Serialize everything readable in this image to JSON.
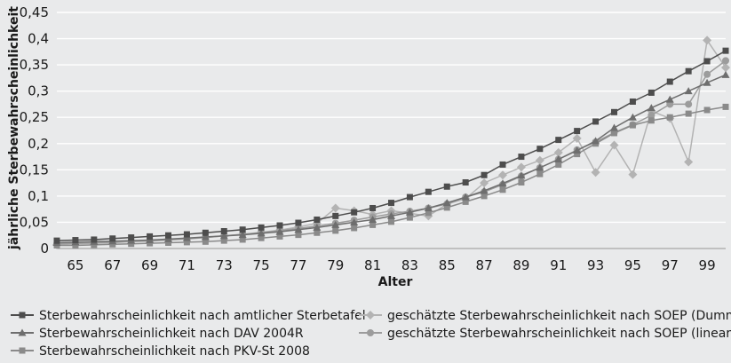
{
  "chart_data": {
    "type": "line",
    "xlabel": "Alter",
    "ylabel": "jährliche Sterbewahrscheinlichkeit",
    "xlim": [
      64,
      100
    ],
    "ylim": [
      0,
      0.45
    ],
    "yticks": [
      "0",
      "0,05",
      "0,1",
      "0,15",
      "0,2",
      "0,25",
      "0,3",
      "0,35",
      "0,4",
      "0,45"
    ],
    "xticks": [
      "65",
      "67",
      "69",
      "71",
      "73",
      "75",
      "77",
      "79",
      "81",
      "83",
      "85",
      "87",
      "89",
      "91",
      "93",
      "95",
      "97",
      "99"
    ],
    "xtick_values": [
      65,
      67,
      69,
      71,
      73,
      75,
      77,
      79,
      81,
      83,
      85,
      87,
      89,
      91,
      93,
      95,
      97,
      99
    ],
    "grid": "horizontal",
    "legend_position": "bottom",
    "series": [
      {
        "name": "Sterbewahrscheinlichkeit nach amtlicher Sterbetafel",
        "color": "#4d4d4d",
        "marker": "square",
        "x": [
          64,
          65,
          66,
          67,
          68,
          69,
          70,
          71,
          72,
          73,
          74,
          75,
          76,
          77,
          78,
          79,
          80,
          81,
          82,
          83,
          84,
          85,
          86,
          87,
          88,
          89,
          90,
          91,
          92,
          93,
          94,
          95,
          96,
          97,
          98,
          99,
          100
        ],
        "values": [
          0.015,
          0.016,
          0.017,
          0.019,
          0.021,
          0.023,
          0.025,
          0.027,
          0.03,
          0.033,
          0.036,
          0.04,
          0.044,
          0.049,
          0.055,
          0.062,
          0.069,
          0.077,
          0.087,
          0.098,
          0.108,
          0.118,
          0.126,
          0.14,
          0.16,
          0.175,
          0.19,
          0.207,
          0.224,
          0.242,
          0.26,
          0.28,
          0.297,
          0.318,
          0.338,
          0.357,
          0.377
        ]
      },
      {
        "name": "Sterbewahrscheinlichkeit nach DAV 2004R",
        "color": "#6e6e6e",
        "marker": "triangle",
        "x": [
          64,
          65,
          66,
          67,
          68,
          69,
          70,
          71,
          72,
          73,
          74,
          75,
          76,
          77,
          78,
          79,
          80,
          81,
          82,
          83,
          84,
          85,
          86,
          87,
          88,
          89,
          90,
          91,
          92,
          93,
          94,
          95,
          96,
          97,
          98,
          99,
          100
        ],
        "values": [
          0.011,
          0.012,
          0.013,
          0.014,
          0.015,
          0.016,
          0.018,
          0.02,
          0.022,
          0.024,
          0.026,
          0.029,
          0.032,
          0.036,
          0.04,
          0.045,
          0.05,
          0.055,
          0.062,
          0.069,
          0.077,
          0.087,
          0.098,
          0.11,
          0.124,
          0.139,
          0.154,
          0.17,
          0.187,
          0.205,
          0.23,
          0.25,
          0.268,
          0.284,
          0.3,
          0.316,
          0.331
        ]
      },
      {
        "name": "Sterbewahrscheinlichkeit nach PKV-St 2008",
        "color": "#8a8a8a",
        "marker": "square",
        "x": [
          64,
          65,
          66,
          67,
          68,
          69,
          70,
          71,
          72,
          73,
          74,
          75,
          76,
          77,
          78,
          79,
          80,
          81,
          82,
          83,
          84,
          85,
          86,
          87,
          88,
          89,
          90,
          91,
          92,
          93,
          94,
          95,
          96,
          97,
          98,
          99,
          100
        ],
        "values": [
          0.006,
          0.006,
          0.007,
          0.008,
          0.009,
          0.01,
          0.011,
          0.012,
          0.013,
          0.015,
          0.017,
          0.02,
          0.023,
          0.026,
          0.03,
          0.034,
          0.039,
          0.045,
          0.051,
          0.059,
          0.068,
          0.078,
          0.089,
          0.1,
          0.112,
          0.126,
          0.142,
          0.16,
          0.18,
          0.2,
          0.22,
          0.235,
          0.244,
          0.25,
          0.257,
          0.264,
          0.27
        ]
      },
      {
        "name": "geschätzte Sterbewahrscheinlichkeit nach SOEP (Dummies)",
        "color": "#b3b3b3",
        "marker": "diamond",
        "x": [
          64,
          65,
          66,
          67,
          68,
          69,
          70,
          71,
          72,
          73,
          74,
          75,
          76,
          77,
          78,
          79,
          80,
          81,
          82,
          83,
          84,
          85,
          86,
          87,
          88,
          89,
          90,
          91,
          92,
          93,
          94,
          95,
          96,
          97,
          98,
          99,
          100
        ],
        "values": [
          0.007,
          0.009,
          0.01,
          0.011,
          0.013,
          0.014,
          0.016,
          0.018,
          0.021,
          0.024,
          0.027,
          0.031,
          0.035,
          0.041,
          0.048,
          0.077,
          0.072,
          0.065,
          0.072,
          0.067,
          0.062,
          0.085,
          0.095,
          0.125,
          0.14,
          0.155,
          0.168,
          0.183,
          0.21,
          0.145,
          0.197,
          0.141,
          0.262,
          0.248,
          0.165,
          0.397,
          0.345
        ]
      },
      {
        "name": "geschätzte Sterbewahrscheinlichkeit nach SOEP (linear)",
        "color": "#9c9c9c",
        "marker": "circle",
        "x": [
          64,
          65,
          66,
          67,
          68,
          69,
          70,
          71,
          72,
          73,
          74,
          75,
          76,
          77,
          78,
          79,
          80,
          81,
          82,
          83,
          84,
          85,
          86,
          87,
          88,
          89,
          90,
          91,
          92,
          93,
          94,
          95,
          96,
          97,
          98,
          99,
          100
        ],
        "values": [
          0.009,
          0.01,
          0.011,
          0.012,
          0.014,
          0.015,
          0.017,
          0.019,
          0.021,
          0.024,
          0.027,
          0.03,
          0.034,
          0.038,
          0.043,
          0.048,
          0.054,
          0.06,
          0.066,
          0.071,
          0.077,
          0.085,
          0.098,
          0.108,
          0.122,
          0.138,
          0.154,
          0.17,
          0.188,
          0.203,
          0.221,
          0.236,
          0.254,
          0.275,
          0.275,
          0.332,
          0.358
        ]
      }
    ]
  }
}
